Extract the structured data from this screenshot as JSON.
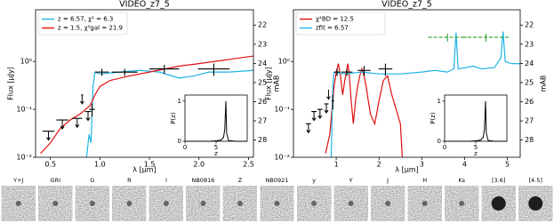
{
  "chart_data": [
    {
      "type": "line",
      "title": "VIDEO_z7_5",
      "x_label": "λ [μm]",
      "y_label": "Flux [μJy]",
      "y2_label": "mAB",
      "log_y": true,
      "legend": "upper left",
      "xlim": [
        0.35,
        2.55
      ],
      "xticks": [
        {
          "value": 0.5,
          "label": "0.5"
        },
        {
          "value": 1,
          "label": "1.0"
        },
        {
          "value": 1.5,
          "label": "1.5"
        },
        {
          "value": 2,
          "label": "2.0"
        },
        {
          "value": 2.5,
          "label": "2.5"
        }
      ],
      "ylim": [
        0.01,
        12
      ],
      "yticks": [
        {
          "value": 0.01,
          "label": "10⁻²"
        },
        {
          "value": 0.1,
          "label": "10⁻¹"
        },
        {
          "value": 1,
          "label": "10⁰"
        }
      ],
      "y2lim": [
        28.9,
        21.2
      ],
      "y2ticks": [
        22,
        23,
        24,
        25,
        26,
        27,
        28
      ],
      "series": [
        {
          "name": "z = 6.57, χ² = 6.3",
          "color": "#1fb4e4",
          "x": [
            0.86,
            0.89,
            0.91,
            0.93,
            0.95,
            1.0,
            1.2,
            1.4,
            1.6,
            1.8,
            1.95,
            2.1,
            2.3,
            2.55
          ],
          "values": [
            0.008,
            0.03,
            0.02,
            0.3,
            0.6,
            0.55,
            0.6,
            0.65,
            0.6,
            0.45,
            0.5,
            0.6,
            0.6,
            0.65
          ]
        },
        {
          "name": "z = 1.5, χ²gal = 21.9",
          "color": "#e01010",
          "x": [
            0.4,
            0.5,
            0.6,
            0.7,
            0.8,
            0.9,
            0.95,
            1.0,
            1.1,
            1.3,
            1.5,
            1.8,
            2.0,
            2.3,
            2.55
          ],
          "values": [
            0.012,
            0.02,
            0.04,
            0.06,
            0.08,
            0.12,
            0.2,
            0.3,
            0.4,
            0.5,
            0.6,
            0.8,
            0.9,
            1.1,
            1.3
          ]
        }
      ],
      "photometry": {
        "color": "#000000",
        "x": [
          0.92,
          1.02,
          1.25,
          1.65,
          2.15
        ],
        "values": [
          0.1,
          0.6,
          0.6,
          0.7,
          0.7
        ],
        "x_err": [
          0.03,
          0.07,
          0.13,
          0.15,
          0.16
        ],
        "y_err": [
          0.03,
          0.1,
          0.1,
          0.15,
          0.2
        ]
      },
      "upper_limits": {
        "color": "#000000",
        "x": [
          0.48,
          0.62,
          0.77,
          0.82,
          0.88
        ],
        "values": [
          0.035,
          0.06,
          0.065,
          0.2,
          0.09
        ],
        "x_err": [
          0.06,
          0.06,
          0.05,
          0.01,
          0.03
        ]
      },
      "inset": {
        "type": "line",
        "x_label": "z",
        "y_label": "P(z)",
        "xlim": [
          0,
          10
        ],
        "ylim": [
          0,
          1.15
        ],
        "xticks": [
          0,
          5
        ],
        "yticks": [
          0,
          1
        ],
        "color": "#000000",
        "x": [
          0,
          2,
          4,
          5,
          5.8,
          6.2,
          6.4,
          6.57,
          6.7,
          7,
          8,
          10
        ],
        "values": [
          0,
          0,
          0,
          0.01,
          0.03,
          0.1,
          0.3,
          1,
          0.2,
          0.02,
          0,
          0
        ]
      }
    },
    {
      "type": "line",
      "title": "VIDEO_z7_5",
      "x_label": "λ [μm]",
      "y_label": "Flux [μJy]",
      "y2_label": "mAB",
      "log_y": true,
      "legend": "upper left",
      "xlim": [
        0,
        5.3
      ],
      "xticks": [
        1,
        2,
        3,
        4,
        5
      ],
      "ylim": [
        0.01,
        12
      ],
      "yticks": [
        {
          "value": 0.01,
          "label": "10⁻²"
        },
        {
          "value": 0.1,
          "label": "10⁻¹"
        },
        {
          "value": 1,
          "label": "10⁰"
        }
      ],
      "y2lim": [
        28.9,
        21.2
      ],
      "y2ticks": [
        22,
        23,
        24,
        25,
        26,
        27,
        28
      ],
      "series": [
        {
          "name": "χ²BD = 12.5",
          "color": "#e01010",
          "x": [
            0.75,
            0.85,
            0.9,
            0.95,
            1.0,
            1.05,
            1.1,
            1.15,
            1.2,
            1.27,
            1.3,
            1.35,
            1.4,
            1.45,
            1.5,
            1.55,
            1.6,
            1.65,
            1.7,
            1.75,
            1.8,
            1.9,
            2.0,
            2.1,
            2.2,
            2.3,
            2.4,
            2.5,
            2.55
          ],
          "values": [
            0.012,
            0.03,
            0.1,
            0.3,
            0.6,
            0.9,
            0.5,
            0.2,
            0.4,
            0.9,
            0.6,
            0.15,
            0.05,
            0.15,
            0.3,
            0.5,
            0.7,
            0.5,
            0.3,
            0.15,
            0.08,
            0.05,
            0.15,
            0.4,
            0.5,
            0.2,
            0.1,
            0.05,
            0.008
          ]
        },
        {
          "name": "zfit = 6.57",
          "color": "#1fb4e4",
          "x": [
            0.88,
            0.92,
            0.95,
            1.2,
            1.6,
            2.0,
            2.5,
            3.0,
            3.3,
            3.6,
            3.75,
            3.8,
            3.85,
            4.2,
            4.4,
            4.7,
            4.85,
            4.9,
            4.95,
            5.1,
            5.3
          ],
          "values": [
            0.008,
            0.3,
            0.6,
            0.55,
            0.6,
            0.55,
            0.55,
            0.6,
            0.65,
            0.6,
            0.7,
            4,
            0.7,
            0.8,
            0.7,
            0.75,
            1.2,
            4.2,
            1,
            0.9,
            0.9
          ]
        }
      ],
      "photometry": {
        "color": "#000000",
        "x": [
          0.92,
          1.02,
          1.25,
          1.65,
          2.15
        ],
        "values": [
          0.15,
          0.6,
          0.6,
          0.65,
          0.7
        ],
        "x_err": [
          0.03,
          0.07,
          0.13,
          0.15,
          0.16
        ],
        "y_err": [
          0.05,
          0.1,
          0.1,
          0.15,
          0.2
        ]
      },
      "upper_limits": {
        "color": "#000000",
        "x": [
          0.35,
          0.48,
          0.62,
          0.77,
          0.82
        ],
        "values": [
          0.05,
          0.09,
          0.1,
          0.13,
          0.25
        ],
        "x_err": [
          0.06,
          0.06,
          0.06,
          0.05,
          0.01
        ]
      },
      "ir_photometry": {
        "color": "#2e9e2e",
        "x": [
          3.6,
          4.5
        ],
        "values": [
          3.2,
          3.2
        ],
        "x_err": [
          0.45,
          0.55
        ],
        "y_err": [
          0.6,
          0.6
        ]
      },
      "inset": {
        "type": "line",
        "x_label": "z",
        "y_label": "P(z)",
        "xlim": [
          0,
          10
        ],
        "ylim": [
          0,
          1.15
        ],
        "xticks": [
          0,
          5
        ],
        "yticks": [
          0,
          1
        ],
        "color": "#000000",
        "x": [
          0,
          2,
          4,
          5,
          5.8,
          6.2,
          6.4,
          6.57,
          6.7,
          7,
          8,
          10
        ],
        "values": [
          0,
          0,
          0,
          0.01,
          0.03,
          0.1,
          0.3,
          1,
          0.2,
          0.02,
          0,
          0
        ]
      }
    }
  ],
  "stamps": {
    "labels": [
      "Y+J",
      "GRI",
      "G",
      "R",
      "I",
      "NB0816",
      "Z",
      "NB0921",
      "y",
      "Y",
      "J",
      "H",
      "Ks",
      "[3.6]",
      "[4.5]"
    ]
  }
}
